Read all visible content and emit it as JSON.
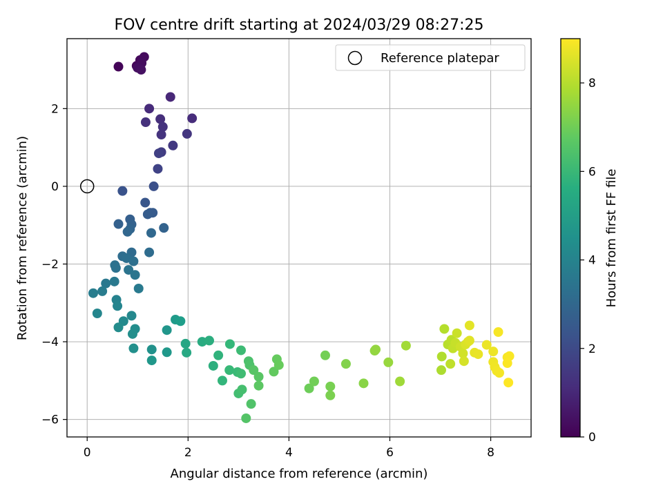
{
  "chart_data": {
    "type": "scatter",
    "title": "FOV centre drift starting at 2024/03/29 08:27:25",
    "xlabel": "Angular distance from reference (arcmin)",
    "ylabel": "Rotation from reference (arcmin)",
    "xlim": [
      -0.4,
      8.8
    ],
    "ylim": [
      -6.45,
      3.8
    ],
    "x_ticks": [
      "0",
      "2",
      "4",
      "6",
      "8"
    ],
    "y_ticks": [
      "−6",
      "−4",
      "−2",
      "0",
      "2"
    ],
    "grid": true,
    "legend": {
      "placement": "top-right",
      "entries": [
        "Reference platepar"
      ]
    },
    "reference_point": {
      "x": 0,
      "y": 0
    },
    "colorbar": {
      "label": "Hours from first FF file",
      "range": [
        0,
        9
      ],
      "ticks": [
        "0",
        "2",
        "4",
        "6",
        "8"
      ],
      "colormap": "viridis"
    },
    "points": [
      {
        "x": 0.62,
        "y": 3.08,
        "h": 0.1
      },
      {
        "x": 0.98,
        "y": 3.1,
        "h": 0.15
      },
      {
        "x": 1.05,
        "y": 3.25,
        "h": 0.2
      },
      {
        "x": 1.13,
        "y": 3.33,
        "h": 0.25
      },
      {
        "x": 1.08,
        "y": 3.17,
        "h": 0.3
      },
      {
        "x": 1.0,
        "y": 3.05,
        "h": 0.35
      },
      {
        "x": 1.07,
        "y": 3.0,
        "h": 0.4
      },
      {
        "x": 1.65,
        "y": 2.3,
        "h": 1.0
      },
      {
        "x": 1.23,
        "y": 2.0,
        "h": 1.1
      },
      {
        "x": 2.08,
        "y": 1.75,
        "h": 1.15
      },
      {
        "x": 1.45,
        "y": 1.73,
        "h": 1.2
      },
      {
        "x": 1.16,
        "y": 1.65,
        "h": 1.25
      },
      {
        "x": 1.5,
        "y": 1.53,
        "h": 1.3
      },
      {
        "x": 1.47,
        "y": 1.33,
        "h": 1.35
      },
      {
        "x": 1.98,
        "y": 1.35,
        "h": 1.4
      },
      {
        "x": 1.7,
        "y": 1.05,
        "h": 1.5
      },
      {
        "x": 1.47,
        "y": 0.88,
        "h": 1.6
      },
      {
        "x": 1.42,
        "y": 0.85,
        "h": 1.7
      },
      {
        "x": 1.4,
        "y": 0.45,
        "h": 1.8
      },
      {
        "x": 1.32,
        "y": 0.0,
        "h": 2.2
      },
      {
        "x": 0.7,
        "y": -0.12,
        "h": 2.3
      },
      {
        "x": 1.15,
        "y": -0.42,
        "h": 2.4
      },
      {
        "x": 1.25,
        "y": -0.68,
        "h": 2.5
      },
      {
        "x": 1.3,
        "y": -0.68,
        "h": 2.55
      },
      {
        "x": 1.2,
        "y": -0.72,
        "h": 2.6
      },
      {
        "x": 0.85,
        "y": -0.85,
        "h": 2.7
      },
      {
        "x": 0.62,
        "y": -0.97,
        "h": 2.75
      },
      {
        "x": 0.88,
        "y": -0.98,
        "h": 2.8
      },
      {
        "x": 1.52,
        "y": -1.07,
        "h": 2.85
      },
      {
        "x": 0.85,
        "y": -1.1,
        "h": 2.9
      },
      {
        "x": 0.8,
        "y": -1.17,
        "h": 2.95
      },
      {
        "x": 1.27,
        "y": -1.2,
        "h": 3.0
      },
      {
        "x": 0.88,
        "y": -1.7,
        "h": 3.1
      },
      {
        "x": 1.23,
        "y": -1.7,
        "h": 3.15
      },
      {
        "x": 0.7,
        "y": -1.8,
        "h": 3.2
      },
      {
        "x": 0.78,
        "y": -1.85,
        "h": 3.25
      },
      {
        "x": 0.92,
        "y": -1.93,
        "h": 3.3
      },
      {
        "x": 0.55,
        "y": -2.03,
        "h": 3.35
      },
      {
        "x": 0.57,
        "y": -2.1,
        "h": 3.4
      },
      {
        "x": 0.82,
        "y": -2.15,
        "h": 3.45
      },
      {
        "x": 0.95,
        "y": -2.28,
        "h": 3.5
      },
      {
        "x": 0.37,
        "y": -2.5,
        "h": 3.6
      },
      {
        "x": 0.54,
        "y": -2.45,
        "h": 3.65
      },
      {
        "x": 1.02,
        "y": -2.63,
        "h": 3.7
      },
      {
        "x": 0.3,
        "y": -2.7,
        "h": 3.75
      },
      {
        "x": 0.12,
        "y": -2.75,
        "h": 3.8
      },
      {
        "x": 0.58,
        "y": -2.92,
        "h": 4.0
      },
      {
        "x": 0.6,
        "y": -3.08,
        "h": 4.1
      },
      {
        "x": 0.2,
        "y": -3.27,
        "h": 4.15
      },
      {
        "x": 0.88,
        "y": -3.33,
        "h": 4.2
      },
      {
        "x": 0.72,
        "y": -3.47,
        "h": 4.3
      },
      {
        "x": 0.62,
        "y": -3.63,
        "h": 4.35
      },
      {
        "x": 0.95,
        "y": -3.67,
        "h": 4.4
      },
      {
        "x": 0.9,
        "y": -3.8,
        "h": 4.45
      },
      {
        "x": 0.92,
        "y": -4.17,
        "h": 4.5
      },
      {
        "x": 1.28,
        "y": -4.2,
        "h": 4.55
      },
      {
        "x": 1.58,
        "y": -3.7,
        "h": 4.7
      },
      {
        "x": 1.28,
        "y": -4.48,
        "h": 4.75
      },
      {
        "x": 1.58,
        "y": -4.27,
        "h": 4.8
      },
      {
        "x": 1.75,
        "y": -3.43,
        "h": 4.9
      },
      {
        "x": 1.85,
        "y": -3.47,
        "h": 5.0
      },
      {
        "x": 1.95,
        "y": -4.05,
        "h": 5.3
      },
      {
        "x": 1.97,
        "y": -4.28,
        "h": 5.4
      },
      {
        "x": 2.28,
        "y": -4.0,
        "h": 5.5
      },
      {
        "x": 2.42,
        "y": -3.97,
        "h": 5.6
      },
      {
        "x": 2.5,
        "y": -4.62,
        "h": 5.7
      },
      {
        "x": 2.6,
        "y": -4.35,
        "h": 5.8
      },
      {
        "x": 2.68,
        "y": -5.0,
        "h": 5.9
      },
      {
        "x": 2.83,
        "y": -4.06,
        "h": 6.0
      },
      {
        "x": 2.82,
        "y": -4.73,
        "h": 6.05
      },
      {
        "x": 2.98,
        "y": -4.78,
        "h": 6.1
      },
      {
        "x": 3.05,
        "y": -4.22,
        "h": 6.15
      },
      {
        "x": 3.05,
        "y": -4.82,
        "h": 6.2
      },
      {
        "x": 3.0,
        "y": -5.33,
        "h": 6.25
      },
      {
        "x": 3.07,
        "y": -5.23,
        "h": 6.3
      },
      {
        "x": 3.2,
        "y": -4.5,
        "h": 6.4
      },
      {
        "x": 3.22,
        "y": -4.6,
        "h": 6.45
      },
      {
        "x": 3.25,
        "y": -5.6,
        "h": 6.5
      },
      {
        "x": 3.15,
        "y": -5.97,
        "h": 6.55
      },
      {
        "x": 3.3,
        "y": -4.73,
        "h": 6.6
      },
      {
        "x": 3.4,
        "y": -4.9,
        "h": 6.65
      },
      {
        "x": 3.4,
        "y": -5.13,
        "h": 6.7
      },
      {
        "x": 3.7,
        "y": -4.77,
        "h": 6.8
      },
      {
        "x": 3.76,
        "y": -4.45,
        "h": 6.85
      },
      {
        "x": 3.8,
        "y": -4.6,
        "h": 6.9
      },
      {
        "x": 4.4,
        "y": -5.2,
        "h": 7.0
      },
      {
        "x": 4.5,
        "y": -5.02,
        "h": 7.05
      },
      {
        "x": 4.72,
        "y": -4.35,
        "h": 7.1
      },
      {
        "x": 4.82,
        "y": -5.15,
        "h": 7.15
      },
      {
        "x": 4.82,
        "y": -5.38,
        "h": 7.2
      },
      {
        "x": 5.13,
        "y": -4.57,
        "h": 7.3
      },
      {
        "x": 5.48,
        "y": -5.07,
        "h": 7.4
      },
      {
        "x": 5.7,
        "y": -4.23,
        "h": 7.5
      },
      {
        "x": 5.72,
        "y": -4.2,
        "h": 7.55
      },
      {
        "x": 5.97,
        "y": -4.53,
        "h": 7.6
      },
      {
        "x": 6.2,
        "y": -5.02,
        "h": 7.7
      },
      {
        "x": 6.32,
        "y": -4.1,
        "h": 7.75
      },
      {
        "x": 7.02,
        "y": -4.73,
        "h": 7.9
      },
      {
        "x": 7.03,
        "y": -4.38,
        "h": 7.95
      },
      {
        "x": 7.08,
        "y": -3.67,
        "h": 8.0
      },
      {
        "x": 7.15,
        "y": -4.07,
        "h": 8.05
      },
      {
        "x": 7.22,
        "y": -3.95,
        "h": 8.1
      },
      {
        "x": 7.2,
        "y": -4.57,
        "h": 8.15
      },
      {
        "x": 7.25,
        "y": -4.17,
        "h": 8.2
      },
      {
        "x": 7.3,
        "y": -4.03,
        "h": 8.25
      },
      {
        "x": 7.33,
        "y": -3.78,
        "h": 8.3
      },
      {
        "x": 7.4,
        "y": -4.13,
        "h": 8.35
      },
      {
        "x": 7.45,
        "y": -4.3,
        "h": 8.4
      },
      {
        "x": 7.47,
        "y": -4.5,
        "h": 8.45
      },
      {
        "x": 7.5,
        "y": -4.07,
        "h": 8.5
      },
      {
        "x": 7.55,
        "y": -4.0,
        "h": 8.55
      },
      {
        "x": 7.58,
        "y": -3.97,
        "h": 8.6
      },
      {
        "x": 7.58,
        "y": -3.58,
        "h": 8.65
      },
      {
        "x": 7.68,
        "y": -4.28,
        "h": 8.7
      },
      {
        "x": 7.75,
        "y": -4.32,
        "h": 8.72
      },
      {
        "x": 7.92,
        "y": -4.08,
        "h": 8.75
      },
      {
        "x": 8.05,
        "y": -4.25,
        "h": 8.78
      },
      {
        "x": 8.05,
        "y": -4.52,
        "h": 8.8
      },
      {
        "x": 8.08,
        "y": -4.65,
        "h": 8.82
      },
      {
        "x": 8.12,
        "y": -4.75,
        "h": 8.85
      },
      {
        "x": 8.17,
        "y": -4.8,
        "h": 8.87
      },
      {
        "x": 8.15,
        "y": -3.75,
        "h": 8.9
      },
      {
        "x": 8.33,
        "y": -4.4,
        "h": 8.92
      },
      {
        "x": 8.37,
        "y": -4.37,
        "h": 8.95
      },
      {
        "x": 8.33,
        "y": -4.55,
        "h": 8.97
      },
      {
        "x": 8.35,
        "y": -5.05,
        "h": 9.0
      }
    ]
  }
}
